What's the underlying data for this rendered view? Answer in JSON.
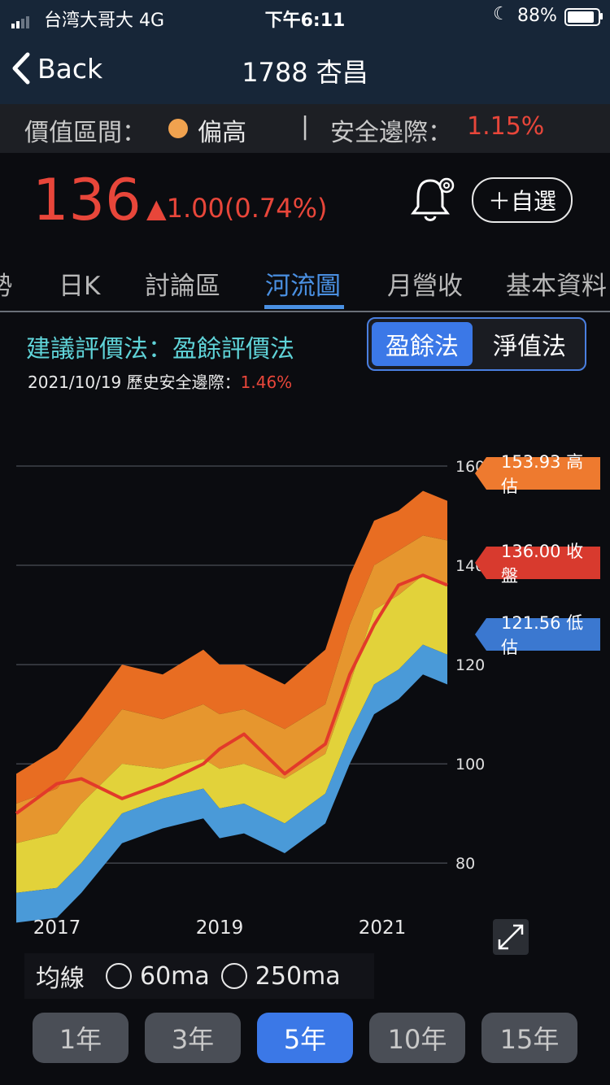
{
  "status_bar": {
    "carrier": "台湾大哥大",
    "network": "4G",
    "time": "下午6:11",
    "battery": "88%"
  },
  "nav": {
    "back_label": "Back",
    "title": "1788 杏昌"
  },
  "value_bar": {
    "label": "價值區間：",
    "status": "偏高",
    "status_color": "#f0a24f",
    "separator": "|",
    "margin_label": "安全邊際：",
    "margin_value": "1.15%"
  },
  "quote": {
    "price": "136",
    "change": "▲1.00(0.74%)",
    "watch_label": "＋自選"
  },
  "tabs": [
    {
      "label": "勢"
    },
    {
      "label": "日K"
    },
    {
      "label": "討論區"
    },
    {
      "label": "河流圖",
      "active": true
    },
    {
      "label": "月營收"
    },
    {
      "label": "基本資料"
    }
  ],
  "method": {
    "label": "建議評價法：盈餘評價法",
    "date": "2021/10/19",
    "hist_label": "歷史安全邊際：",
    "hist_value": "1.46%"
  },
  "toggle": {
    "eps": "盈餘法",
    "nav": "淨值法"
  },
  "chart_data": {
    "type": "area",
    "x": [
      2016.5,
      2017.0,
      2017.3,
      2017.8,
      2018.3,
      2018.8,
      2019.0,
      2019.3,
      2019.8,
      2020.3,
      2020.6,
      2020.9,
      2021.2,
      2021.5,
      2021.8
    ],
    "series": [
      {
        "name": "",
        "values": [
          74,
          75,
          80,
          90,
          93,
          95,
          91,
          92,
          88,
          94,
          106,
          116,
          119,
          124,
          122
        ]
      },
      {
        "name": "",
        "values": [
          84,
          86,
          92,
          100,
          99,
          101,
          99,
          100,
          97,
          102,
          116,
          131,
          134,
          138,
          136
        ]
      },
      {
        "name": "",
        "values": [
          92,
          95,
          101,
          111,
          109,
          112,
          110,
          111,
          107,
          112,
          128,
          140,
          143,
          146,
          145
        ]
      },
      {
        "name": "",
        "values": [
          98,
          103,
          109,
          120,
          118,
          123,
          120,
          120,
          116,
          123,
          138,
          149,
          151,
          155,
          153
        ]
      },
      {
        "name": "",
        "values": [
          90,
          96,
          97,
          93,
          96,
          100,
          103,
          106,
          98,
          104,
          118,
          128,
          136,
          138,
          136
        ]
      }
    ],
    "xticks": [
      "2017",
      "2019",
      "2021"
    ],
    "yticks": [
      80,
      100,
      120,
      140,
      160
    ],
    "ylim": [
      72,
      160
    ],
    "grid": true,
    "colors": [
      "#4a9ad8",
      "#e2d23a",
      "#e6962e",
      "#e86d22",
      "#e23a2a"
    ],
    "markers": [
      {
        "label": "153.93 高估"
      },
      {
        "label": "136.00 收盤"
      },
      {
        "label": "121.56 低估"
      }
    ]
  },
  "ma": {
    "label": "均線",
    "options": [
      "60ma",
      "250ma"
    ]
  },
  "periods": [
    {
      "label": "1年"
    },
    {
      "label": "3年"
    },
    {
      "label": "5年",
      "active": true
    },
    {
      "label": "10年"
    },
    {
      "label": "15年"
    }
  ]
}
